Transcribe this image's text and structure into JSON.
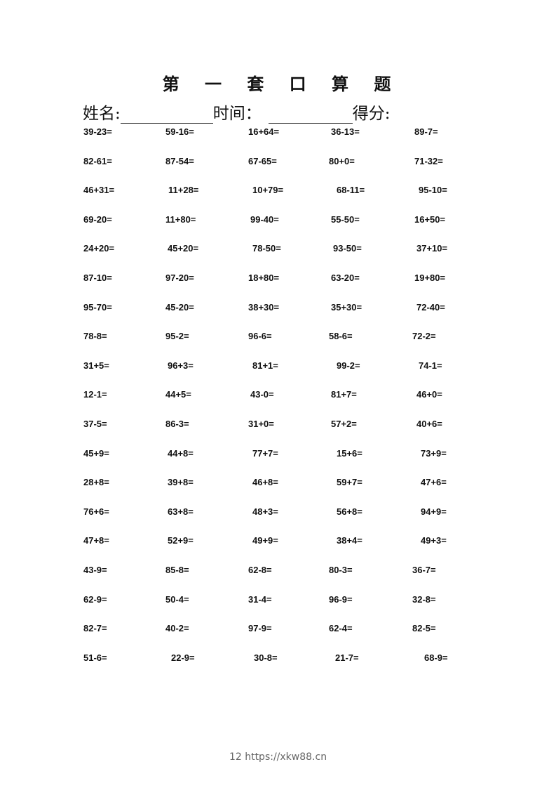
{
  "title": "第 一 套 口 算 题",
  "info": {
    "name_label": "姓名:",
    "time_label": "时间：",
    "score_label": "得分:"
  },
  "rows": [
    [
      "39-23=",
      "59-16=",
      "16+64=",
      "36-13=",
      "89-7="
    ],
    [
      "82-61=",
      "87-54=",
      "67-65=",
      "80+0=",
      "71-32="
    ],
    [
      "46+31=",
      "11+28=",
      "10+79=",
      "68-11=",
      "95-10="
    ],
    [
      "69-20=",
      "11+80=",
      "99-40=",
      "55-50=",
      "16+50="
    ],
    [
      "24+20=",
      "45+20=",
      "78-50=",
      "93-50=",
      "37+10="
    ],
    [
      "87-10=",
      "97-20=",
      "18+80=",
      "63-20=",
      "19+80="
    ],
    [
      "95-70=",
      "45-20=",
      "38+30=",
      "35+30=",
      "72-40="
    ],
    [
      "78-8=",
      "95-2=",
      "96-6=",
      "58-6=",
      "72-2="
    ],
    [
      "31+5=",
      "96+3=",
      "81+1=",
      "99-2=",
      "74-1="
    ],
    [
      "12-1=",
      "44+5=",
      "43-0=",
      "81+7=",
      "46+0="
    ],
    [
      "37-5=",
      "86-3=",
      "31+0=",
      "57+2=",
      "40+6="
    ],
    [
      "45+9=",
      "44+8=",
      "77+7=",
      "15+6=",
      "73+9="
    ],
    [
      "28+8=",
      "39+8=",
      "46+8=",
      "59+7=",
      "47+6="
    ],
    [
      "76+6=",
      "63+8=",
      "48+3=",
      "56+8=",
      "94+9="
    ],
    [
      "47+8=",
      "52+9=",
      "49+9=",
      "38+4=",
      "49+3="
    ],
    [
      "43-9=",
      "85-8=",
      "62-8=",
      "80-3=",
      "36-7="
    ],
    [
      "62-9=",
      "50-4=",
      "31-4=",
      "96-9=",
      "32-8="
    ],
    [
      "82-7=",
      "40-2=",
      "97-9=",
      "62-4=",
      "82-5="
    ],
    [
      "51-6=",
      "22-9=",
      "30-8=",
      "21-7=",
      "68-9="
    ]
  ],
  "footer": "12 https://xkw88.cn"
}
